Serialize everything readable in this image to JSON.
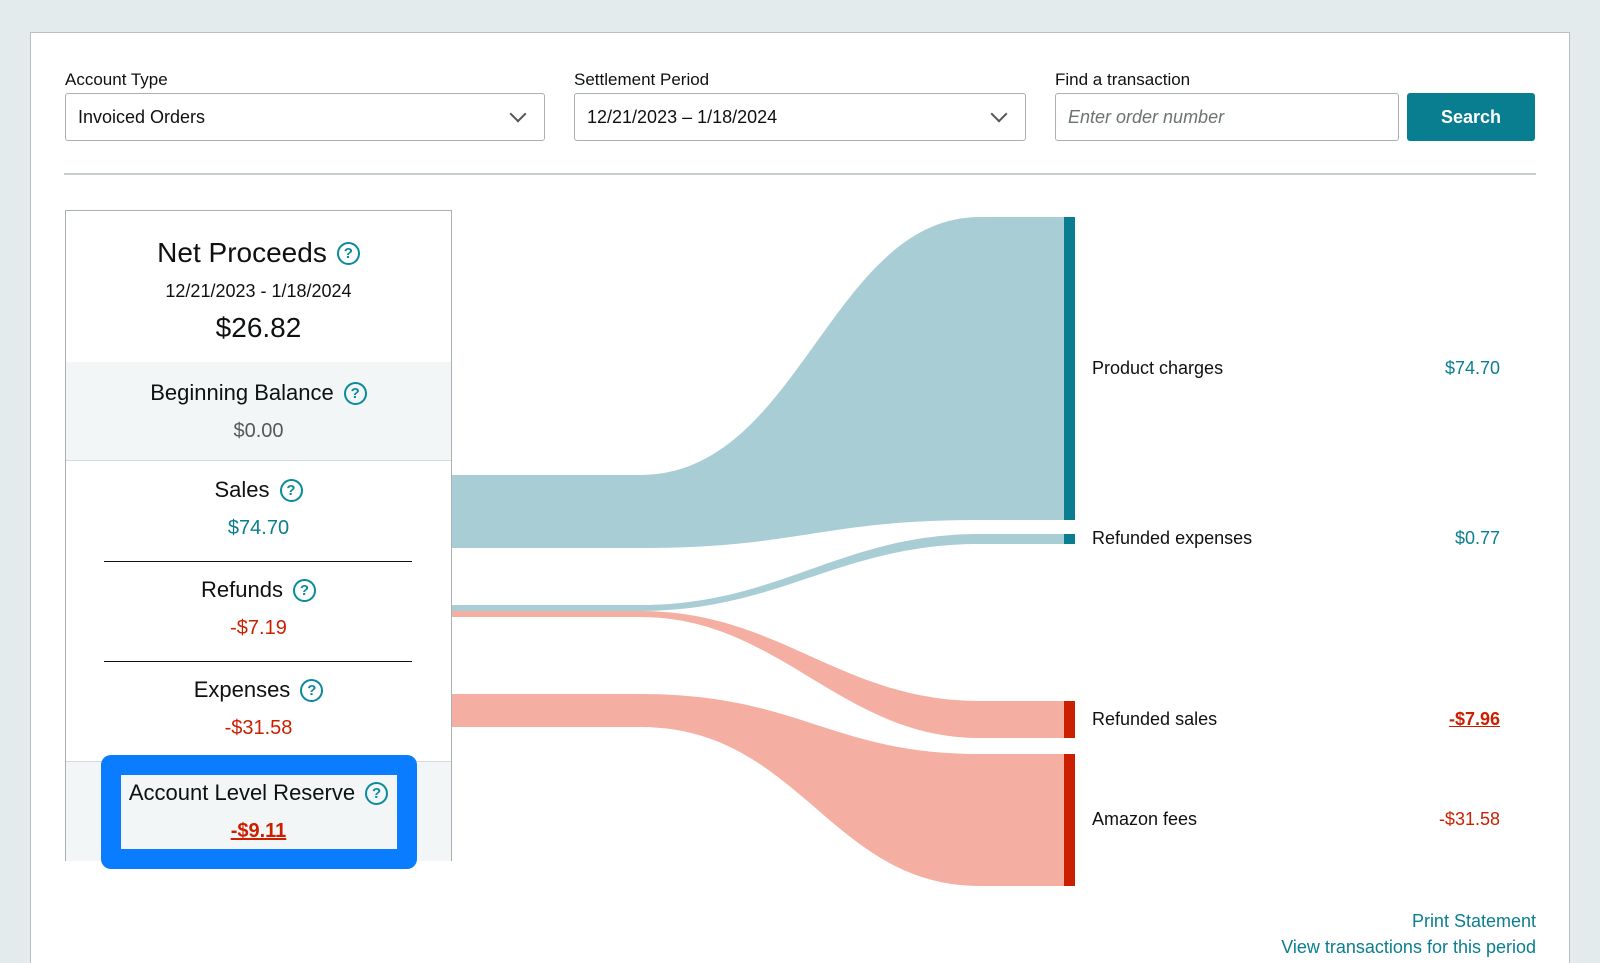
{
  "filters": {
    "account_type_label": "Account Type",
    "account_type_value": "Invoiced Orders",
    "settlement_label": "Settlement Period",
    "settlement_value": "12/21/2023 – 1/18/2024",
    "find_label": "Find a transaction",
    "find_placeholder": "Enter order number",
    "search_button": "Search"
  },
  "summary": {
    "title": "Net Proceeds",
    "period": "12/21/2023 - 1/18/2024",
    "total": "$26.82",
    "beginning_balance_label": "Beginning Balance",
    "beginning_balance_value": "$0.00",
    "sales_label": "Sales",
    "sales_value": "$74.70",
    "refunds_label": "Refunds",
    "refunds_value": "-$7.19",
    "expenses_label": "Expenses",
    "expenses_value": "-$31.58",
    "reserve_label": "Account Level Reserve",
    "reserve_value": "-$9.11",
    "help_glyph": "?"
  },
  "breakdown": [
    {
      "label": "Product charges",
      "value": "$74.70",
      "color": "#0a7e91"
    },
    {
      "label": "Refunded expenses",
      "value": "$0.77",
      "color": "#0a7e91"
    },
    {
      "label": "Refunded sales",
      "value": "-$7.96",
      "color": "#cc1f00"
    },
    {
      "label": "Amazon fees",
      "value": "-$31.58",
      "color": "#cc1f00"
    }
  ],
  "colors": {
    "accent": "#0a7e91",
    "positive_flow": "#a8cdd4",
    "negative_flow": "#f4afa2",
    "negative": "#cc1f00",
    "highlight": "#0a7cff"
  },
  "links": {
    "print": "Print Statement",
    "view": "View transactions for this period"
  }
}
